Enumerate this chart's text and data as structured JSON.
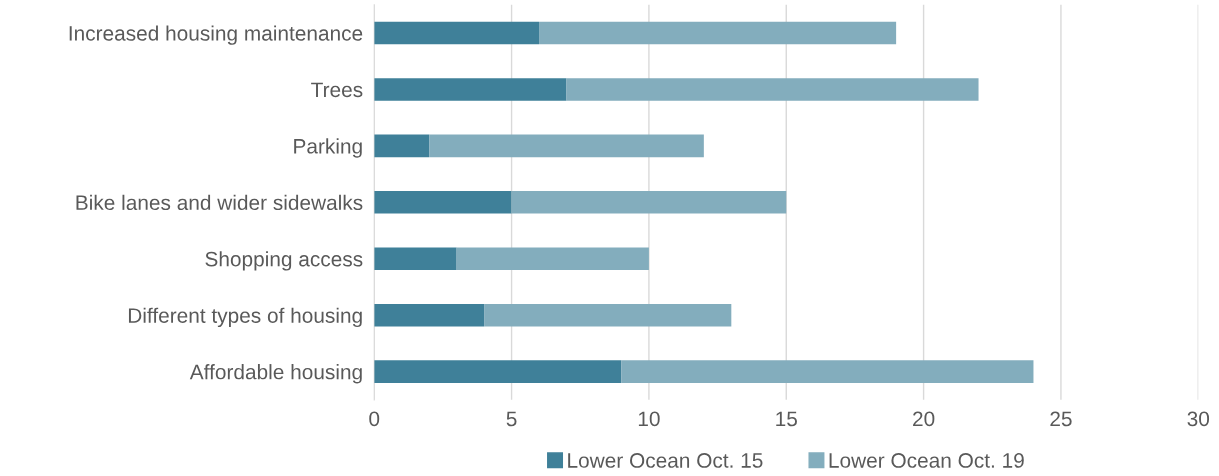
{
  "chart_data": {
    "type": "bar",
    "orientation": "horizontal",
    "stacked": true,
    "categories": [
      "Increased housing maintenance",
      "Trees",
      "Parking",
      "Bike lanes and wider sidewalks",
      "Shopping access",
      "Different types of housing",
      "Affordable housing"
    ],
    "series": [
      {
        "name": "Lower Ocean Oct. 15",
        "color": "#3f8099",
        "values": [
          6,
          7,
          2,
          5,
          3,
          4,
          9
        ]
      },
      {
        "name": "Lower Ocean Oct. 19",
        "color": "#83adbd",
        "values": [
          13,
          15,
          10,
          10,
          7,
          9,
          15
        ]
      }
    ],
    "xlim": [
      0,
      30
    ],
    "xticks": [
      0,
      5,
      10,
      15,
      20,
      25,
      30
    ],
    "grid": "x",
    "legend": "bottom"
  }
}
